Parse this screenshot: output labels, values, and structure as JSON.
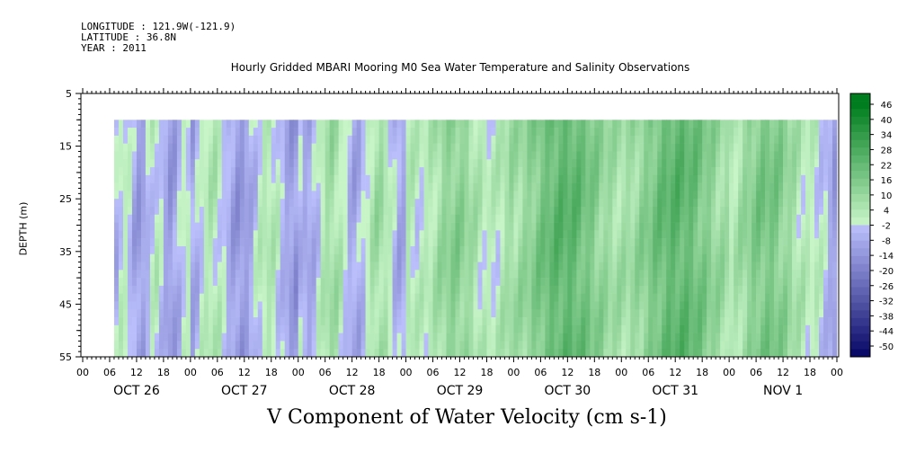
{
  "header": {
    "longitude": "LONGITUDE : 121.9W(-121.9)",
    "latitude": "LATITUDE : 36.8N",
    "year": "YEAR : 2011"
  },
  "chart_data": {
    "type": "heatmap",
    "title": "Hourly Gridded MBARI Mooring M0 Sea Water Temperature and Salinity Observations",
    "variable_label": "V Component of Water Velocity (cm s-1)",
    "ylabel": "DEPTH (m)",
    "ylim": [
      55,
      5
    ],
    "yticks": [
      5,
      15,
      25,
      35,
      45,
      55
    ],
    "data_depth_range": [
      10,
      55
    ],
    "x_hour_ticks": [
      "00",
      "06",
      "12",
      "18",
      "00",
      "06",
      "12",
      "18",
      "00",
      "06",
      "12",
      "18",
      "00",
      "06",
      "12",
      "18",
      "00",
      "06",
      "12",
      "18",
      "00",
      "06",
      "12",
      "18",
      "00",
      "06",
      "12",
      "18",
      "00"
    ],
    "x_day_labels": [
      "OCT 26",
      "OCT 27",
      "OCT 28",
      "OCT 29",
      "OCT 30",
      "OCT 31",
      "NOV  1"
    ],
    "colorbar": {
      "ticks": [
        "46",
        "40",
        "34",
        "28",
        "22",
        "16",
        "10",
        "4",
        "-2",
        "-8",
        "-14",
        "-20",
        "-26",
        "-32",
        "-38",
        "-44",
        "-50"
      ],
      "positive_color": "#00b432",
      "negative_color": "#3c50ff",
      "zero_color": "#c8f0c8"
    },
    "pattern_by_day": [
      {
        "day": "OCT 26",
        "dominant_sign": "mixed, mostly negative (-8 to 4)"
      },
      {
        "day": "OCT 27",
        "dominant_sign": "mixed, negative bands (-14 to 10)"
      },
      {
        "day": "OCT 28",
        "dominant_sign": "mixed (-14 to 10)"
      },
      {
        "day": "OCT 29",
        "dominant_sign": "positive (4 to 16)"
      },
      {
        "day": "OCT 30",
        "dominant_sign": "positive (10 to 28)"
      },
      {
        "day": "OCT 31",
        "dominant_sign": "positive (10 to 28)"
      },
      {
        "day": "NOV  1",
        "dominant_sign": "mixed, positive then negative (-8 to 22)"
      }
    ]
  }
}
